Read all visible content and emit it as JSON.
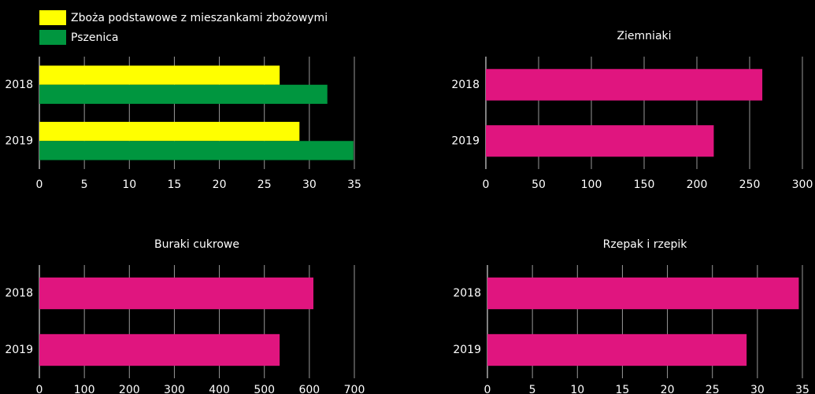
{
  "chart_data": [
    {
      "type": "bar",
      "categories": [
        "2018",
        "2019"
      ],
      "series": [
        {
          "name": "Zboża podstawowe z mieszankami zbożowymi",
          "color": "#ffff00",
          "values": [
            26.7,
            28.9
          ]
        },
        {
          "name": "Pszenica",
          "color": "#00963f",
          "values": [
            32.0,
            34.9
          ]
        }
      ],
      "xlim": [
        0,
        35
      ],
      "xticks": [
        0,
        5,
        10,
        15,
        20,
        25,
        30,
        35
      ],
      "grid": true
    },
    {
      "type": "bar",
      "title": "Ziemniaki",
      "categories": [
        "2018",
        "2019"
      ],
      "values": [
        262,
        216
      ],
      "color": "#e0157f",
      "xlim": [
        0,
        300
      ],
      "xticks": [
        0,
        50,
        100,
        150,
        200,
        250,
        300
      ],
      "grid": true
    },
    {
      "type": "bar",
      "title": "Buraki cukrowe",
      "categories": [
        "2018",
        "2019"
      ],
      "values": [
        609,
        534
      ],
      "color": "#e0157f",
      "xlim": [
        0,
        700
      ],
      "xticks": [
        0,
        100,
        200,
        300,
        400,
        500,
        600,
        700
      ],
      "grid": true
    },
    {
      "type": "bar",
      "title": "Rzepak i rzepik",
      "categories": [
        "2018",
        "2019"
      ],
      "values": [
        34.6,
        28.8
      ],
      "color": "#e0157f",
      "xlim": [
        0,
        35
      ],
      "xticks": [
        0,
        5,
        10,
        15,
        20,
        25,
        30,
        35
      ],
      "grid": true
    }
  ]
}
